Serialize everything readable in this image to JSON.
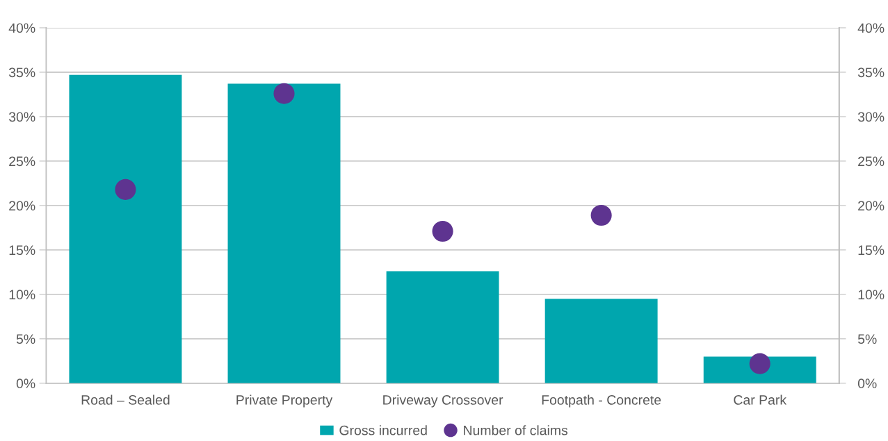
{
  "chart_data": {
    "type": "bar",
    "categories": [
      "Road – Sealed",
      "Private Property",
      "Driveway Crossover",
      "Footpath - Concrete",
      "Car Park"
    ],
    "series": [
      {
        "name": "Gross incurred",
        "color": "#00a6ae",
        "values": [
          34.7,
          33.7,
          12.6,
          9.5,
          3.0
        ]
      },
      {
        "name": "Number of claims",
        "type": "scatter",
        "axis": "y2",
        "color": "#5e3490",
        "values": [
          21.8,
          32.6,
          17.1,
          18.9,
          2.2
        ]
      }
    ],
    "ylim": [
      0,
      40
    ],
    "yticks": [
      {
        "value": 0,
        "label": "0%"
      },
      {
        "value": 5,
        "label": "5%"
      },
      {
        "value": 10,
        "label": "10%"
      },
      {
        "value": 15,
        "label": "15%"
      },
      {
        "value": 20,
        "label": "20%"
      },
      {
        "value": 25,
        "label": "25%"
      },
      {
        "value": 30,
        "label": "30%"
      },
      {
        "value": 35,
        "label": "35%"
      },
      {
        "value": 40,
        "label": "40%"
      }
    ],
    "y2lim": [
      0,
      40
    ],
    "y2ticks": [
      {
        "value": 0,
        "label": "0%"
      },
      {
        "value": 5,
        "label": "5%"
      },
      {
        "value": 10,
        "label": "10%"
      },
      {
        "value": 15,
        "label": "15%"
      },
      {
        "value": 20,
        "label": "20%"
      },
      {
        "value": 25,
        "label": "25%"
      },
      {
        "value": 30,
        "label": "30%"
      },
      {
        "value": 35,
        "label": "35%"
      },
      {
        "value": 40,
        "label": "40%"
      }
    ],
    "grid": "y",
    "legend": "bottom",
    "marker": "circle"
  }
}
